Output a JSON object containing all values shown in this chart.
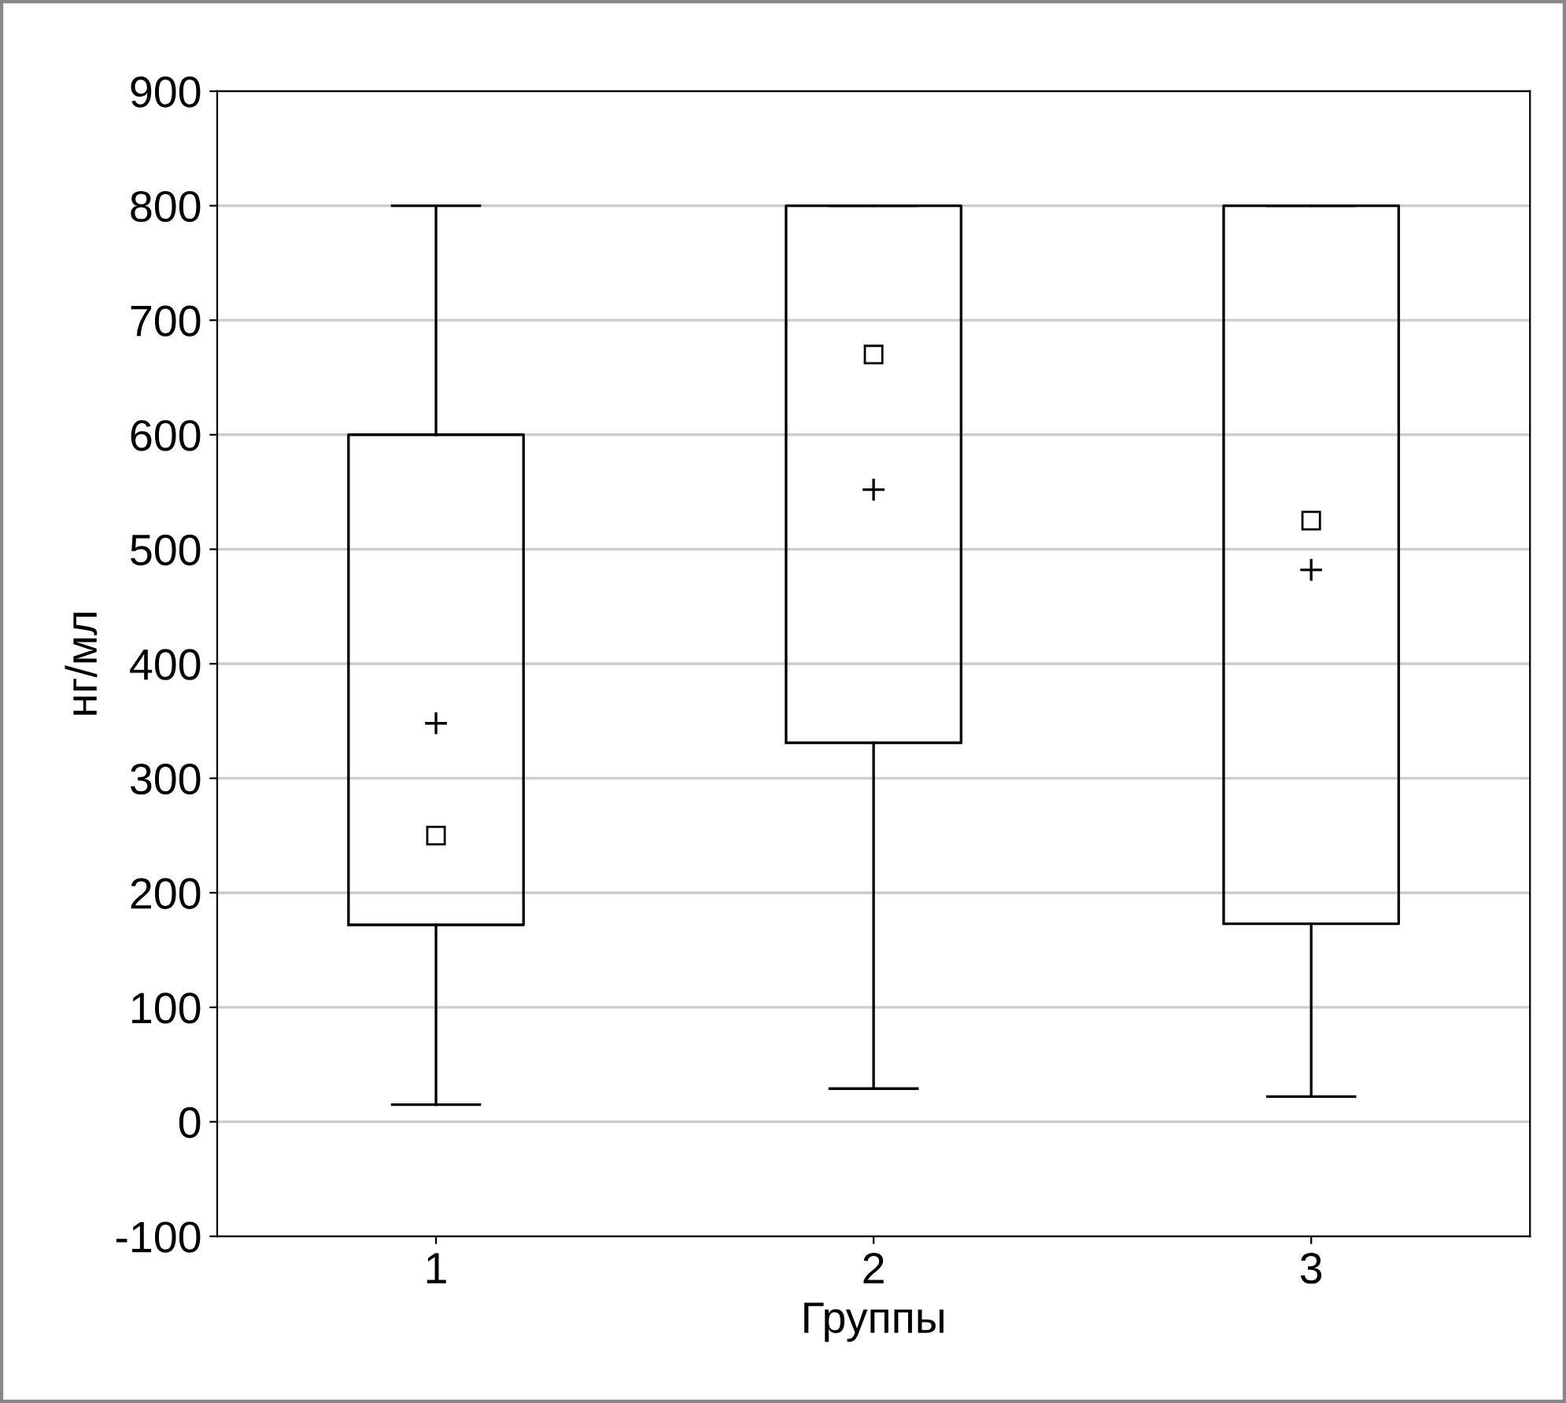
{
  "chart_data": {
    "type": "box",
    "xlabel": "Группы",
    "ylabel": "нг/мл",
    "categories": [
      "1",
      "2",
      "3"
    ],
    "boxes": [
      {
        "low": 15,
        "q1": 172,
        "median": 250,
        "q3": 600,
        "high": 800,
        "mean": 348
      },
      {
        "low": 29,
        "q1": 331,
        "median": 670,
        "q3": 800,
        "high": 800,
        "mean": 552
      },
      {
        "low": 22,
        "q1": 173,
        "median": 525,
        "q3": 800,
        "high": 800,
        "mean": 482
      }
    ],
    "ylim": [
      -100,
      900
    ],
    "yticks": [
      -100,
      0,
      100,
      200,
      300,
      400,
      500,
      600,
      700,
      800,
      900
    ],
    "grid": "y"
  }
}
